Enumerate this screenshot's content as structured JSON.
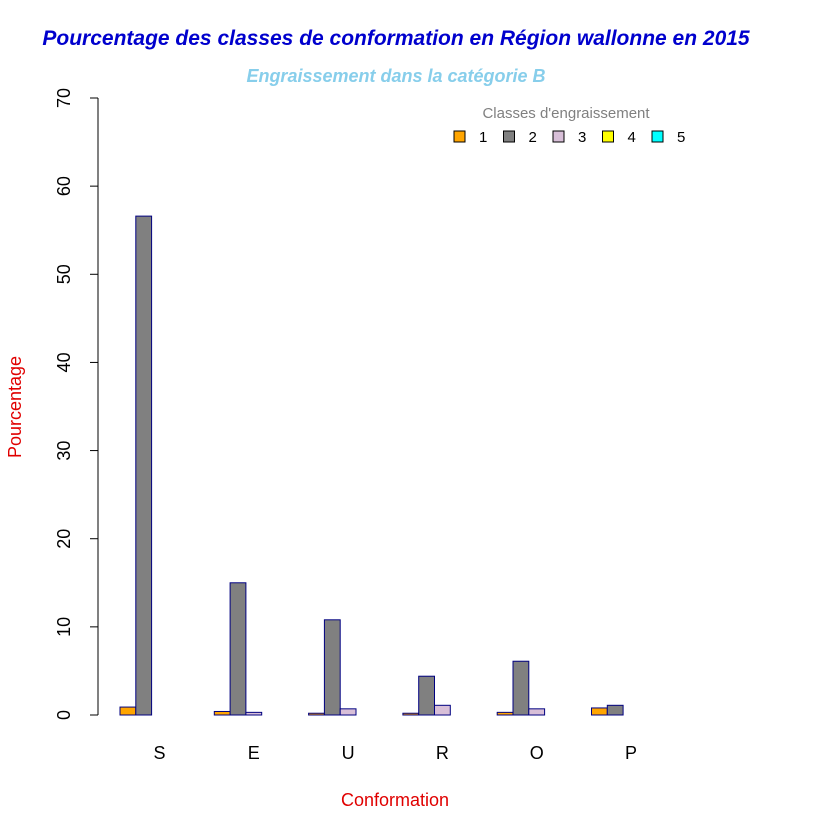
{
  "chart_data": {
    "type": "bar",
    "title": "Pourcentage des classes de conformation en Région wallonne en 2015",
    "subtitle": "Engraissement dans la catégorie B",
    "xlabel": "Conformation",
    "ylabel": "Pourcentage",
    "categories": [
      "S",
      "E",
      "U",
      "R",
      "O",
      "P"
    ],
    "ylim": [
      0,
      70
    ],
    "yticks": [
      0,
      10,
      20,
      30,
      40,
      50,
      60,
      70
    ],
    "legend": {
      "title": "Classes d'engraissement",
      "placement": "top-right"
    },
    "series": [
      {
        "name": "1",
        "color": "#FFA500",
        "values": [
          0.9,
          0.4,
          0.2,
          0.2,
          0.3,
          0.8
        ]
      },
      {
        "name": "2",
        "color": "#808080",
        "values": [
          56.6,
          15.0,
          10.8,
          4.4,
          6.1,
          1.1
        ]
      },
      {
        "name": "3",
        "color": "#D8BFD8",
        "values": [
          0.0,
          0.3,
          0.7,
          1.1,
          0.7,
          0.0
        ]
      },
      {
        "name": "4",
        "color": "#FFFF00",
        "values": [
          0.0,
          0.0,
          0.0,
          0.0,
          0.0,
          0.0
        ]
      },
      {
        "name": "5",
        "color": "#00FFFF",
        "values": [
          0.0,
          0.0,
          0.0,
          0.0,
          0.0,
          0.0
        ]
      }
    ],
    "colors": {
      "title": "#0000CD",
      "subtitle": "#87CEEB",
      "axis_labels": "#E00000",
      "legend_title": "#808080",
      "bar_border": "#000080"
    }
  }
}
